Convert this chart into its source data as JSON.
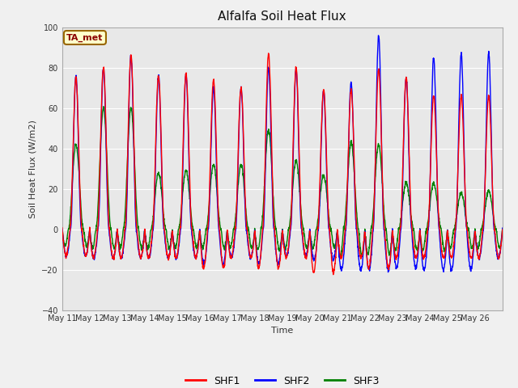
{
  "title": "Alfalfa Soil Heat Flux",
  "ylabel": "Soil Heat Flux (W/m2)",
  "xlabel": "Time",
  "ylim": [
    -40,
    100
  ],
  "yticks": [
    -40,
    -20,
    0,
    20,
    40,
    60,
    80,
    100
  ],
  "fig_bg_color": "#f0f0f0",
  "plot_bg_color": "#e8e8e8",
  "grid_color": "#cccccc",
  "annotation_text": "TA_met",
  "annotation_bg": "#ffffcc",
  "annotation_border": "#996600",
  "line_colors": {
    "SHF1": "red",
    "SHF2": "blue",
    "SHF3": "green"
  },
  "num_days": 16,
  "x_tick_labels": [
    "May 11",
    "May 12",
    "May 13",
    "May 14",
    "May 15",
    "May 16",
    "May 17",
    "May 18",
    "May 19",
    "May 20",
    "May 21",
    "May 22",
    "May 23",
    "May 24",
    "May 25",
    "May 26"
  ]
}
